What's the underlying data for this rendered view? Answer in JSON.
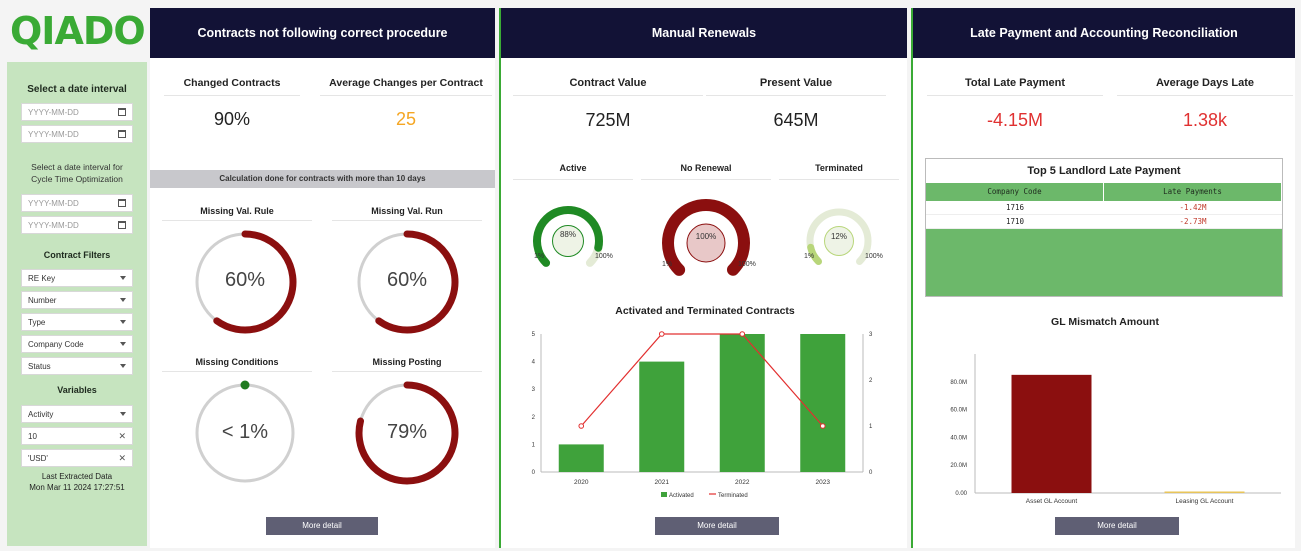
{
  "brand": {
    "logo": "QIADO",
    "color": "#3aaa35"
  },
  "sidebar": {
    "date_interval_label": "Select a date interval",
    "date_from_placeholder": "YYYY-MM-DD",
    "date_to_placeholder": "YYYY-MM-DD",
    "cycle_label": "Select a date interval for Cycle Time Optimization",
    "cycle_from_placeholder": "YYYY-MM-DD",
    "cycle_to_placeholder": "YYYY-MM-DD",
    "contract_filters_label": "Contract Filters",
    "filters": [
      "RE Key",
      "Number",
      "Type",
      "Company Code",
      "Status"
    ],
    "variables_label": "Variables",
    "variable_activity": "Activity",
    "variable_value": "10",
    "variable_currency": "'USD'",
    "last_extracted_label": "Last Extracted Data",
    "last_extracted_value": "Mon Mar 11 2024 17:27:51"
  },
  "panel1": {
    "title": "Contracts not following correct procedure",
    "changed_label": "Changed Contracts",
    "changed_value": "90%",
    "avg_label": "Average Changes per Contract",
    "avg_value": "25",
    "calc_note": "Calculation done for contracts with more than 10 days",
    "gauges": [
      {
        "label": "Missing Val. Rule",
        "value": "60%",
        "fraction": 0.6
      },
      {
        "label": "Missing Val. Run",
        "value": "60%",
        "fraction": 0.6
      },
      {
        "label": "Missing Conditions",
        "value": "< 1%",
        "fraction": 0.005
      },
      {
        "label": "Missing Posting",
        "value": "79%",
        "fraction": 0.79
      }
    ],
    "more_detail": "More detail"
  },
  "panel2": {
    "title": "Manual Renewals",
    "contract_value_label": "Contract Value",
    "contract_value": "725M",
    "present_value_label": "Present Value",
    "present_value": "645M",
    "mini_gauges": [
      {
        "label": "Active",
        "value": "88%",
        "min": "1%",
        "max": "100%",
        "fraction": 0.88,
        "color": "#1f8a24"
      },
      {
        "label": "No Renewal",
        "value": "100%",
        "min": "1%",
        "max": "100%",
        "fraction": 1.0,
        "color": "#8b0f0f"
      },
      {
        "label": "Terminated",
        "value": "12%",
        "min": "1%",
        "max": "100%",
        "fraction": 0.12,
        "color": "#b8d67a"
      }
    ],
    "more_detail": "More detail"
  },
  "panel3": {
    "title": "Late Payment and Accounting Reconciliation",
    "total_late_label": "Total Late Payment",
    "total_late_value": "-4.15M",
    "avg_days_label": "Average Days Late",
    "avg_days_value": "1.38k",
    "table": {
      "title": "Top 5 Landlord Late Payment",
      "columns": [
        "Company Code",
        "Late Payments"
      ],
      "rows": [
        [
          "1716",
          "-1.42M"
        ],
        [
          "1710",
          "-2.73M"
        ]
      ]
    },
    "more_detail": "More detail"
  },
  "colors": {
    "navy": "#121236",
    "green": "#3aaa35",
    "dark_red": "#8b0f0f",
    "bar_green": "#3fa23b",
    "red_value": "#e03131",
    "orange_value": "#f5a623"
  },
  "chart_data": [
    {
      "type": "bar",
      "title": "Activated and Terminated Contracts",
      "categories": [
        "2020",
        "2021",
        "2022",
        "2023"
      ],
      "series": [
        {
          "name": "Activated",
          "type": "bar",
          "axis": "left",
          "values": [
            1,
            4,
            5,
            5
          ]
        },
        {
          "name": "Terminated",
          "type": "line",
          "axis": "right",
          "values": [
            1,
            3,
            3,
            1
          ]
        }
      ],
      "ylim_left": [
        0,
        5
      ],
      "yticks_left": [
        "0",
        "1",
        "2",
        "3",
        "4",
        "5"
      ],
      "ylim_right": [
        0,
        3
      ],
      "yticks_right": [
        "0",
        "1",
        "2",
        "3"
      ],
      "legend": [
        "Activated",
        "Terminated"
      ]
    },
    {
      "type": "bar",
      "title": "GL Mismatch Amount",
      "categories": [
        "Asset GL Account",
        "Leasing GL Account"
      ],
      "values": [
        85,
        0.5
      ],
      "ylim": [
        0,
        100
      ],
      "yticks": [
        "0.00",
        "20.0M",
        "40.0M",
        "60.0M",
        "80.0M"
      ]
    }
  ]
}
